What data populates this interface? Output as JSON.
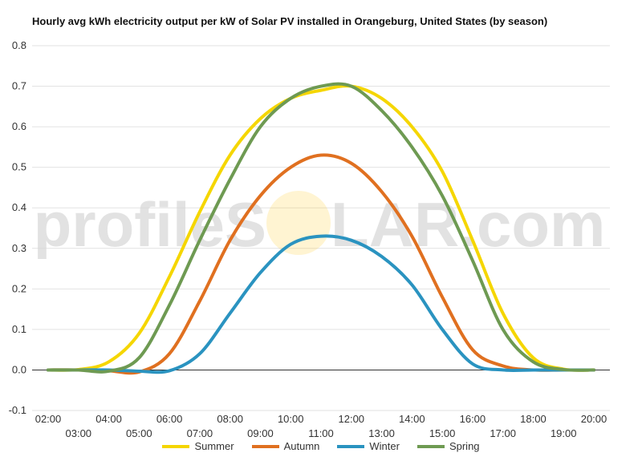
{
  "watermark": {
    "prefix": "profileS",
    "suffix": "LAR.com",
    "sun_color": "#ffcc33"
  },
  "chart_data": {
    "type": "line",
    "title": "Hourly avg kWh electricity output per kW of Solar PV installed in Orangeburg, United States (by season)",
    "xlabel": "",
    "ylabel": "",
    "x": [
      "02:00",
      "03:00",
      "04:00",
      "05:00",
      "06:00",
      "07:00",
      "08:00",
      "09:00",
      "10:00",
      "11:00",
      "12:00",
      "13:00",
      "14:00",
      "15:00",
      "16:00",
      "17:00",
      "18:00",
      "19:00",
      "20:00"
    ],
    "ylim": [
      -0.1,
      0.8
    ],
    "yticks": [
      "-0.1",
      "0.0",
      "0.1",
      "0.2",
      "0.3",
      "0.4",
      "0.5",
      "0.6",
      "0.7",
      "0.8"
    ],
    "grid": true,
    "legend_position": "bottom",
    "series": [
      {
        "name": "Summer",
        "color": "#f5d600",
        "values": [
          0,
          0.001,
          0.02,
          0.09,
          0.23,
          0.39,
          0.53,
          0.62,
          0.67,
          0.69,
          0.7,
          0.67,
          0.6,
          0.49,
          0.32,
          0.14,
          0.03,
          0.002,
          0
        ]
      },
      {
        "name": "Autumn",
        "color": "#e07020",
        "values": [
          0,
          0,
          -0.002,
          -0.005,
          0.04,
          0.17,
          0.32,
          0.43,
          0.5,
          0.53,
          0.51,
          0.44,
          0.33,
          0.18,
          0.05,
          0.01,
          0,
          0,
          0
        ]
      },
      {
        "name": "Winter",
        "color": "#2a93c0",
        "values": [
          0,
          0,
          0,
          -0.003,
          -0.002,
          0.04,
          0.14,
          0.24,
          0.31,
          0.33,
          0.32,
          0.28,
          0.21,
          0.1,
          0.015,
          0,
          0,
          0,
          0
        ]
      },
      {
        "name": "Spring",
        "color": "#6e9a52",
        "values": [
          0,
          0,
          -0.003,
          0.03,
          0.16,
          0.32,
          0.47,
          0.6,
          0.67,
          0.7,
          0.7,
          0.64,
          0.55,
          0.43,
          0.27,
          0.1,
          0.02,
          0.001,
          0
        ]
      }
    ]
  }
}
